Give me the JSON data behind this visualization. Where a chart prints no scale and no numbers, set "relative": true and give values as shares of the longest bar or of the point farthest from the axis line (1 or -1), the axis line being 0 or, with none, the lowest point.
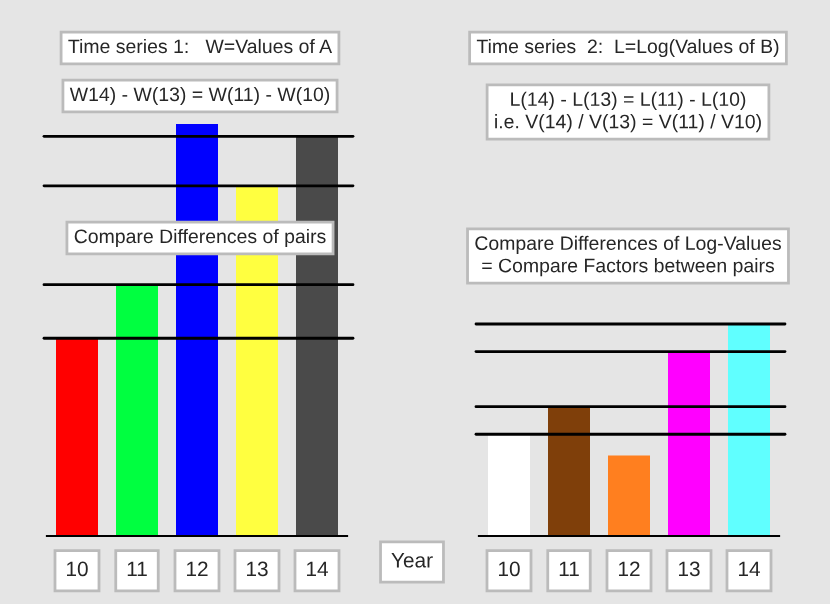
{
  "chart_data": [
    {
      "type": "bar",
      "relative": true,
      "title": "Time series 1:   W=Values of A",
      "subtitle": "W14) - W(13) = W(11) - W(10)",
      "xlabel": "Year",
      "categories": [
        "10",
        "11",
        "12",
        "13",
        "14"
      ],
      "values": [
        0.48,
        0.61,
        1,
        0.85,
        0.97
      ],
      "colors": [
        "#ff0000",
        "#00ff40",
        "#0000ff",
        "#ffff40",
        "#4a4a4a"
      ],
      "ref_lines": [
        {
          "axis": "y",
          "value": 0.97,
          "color": "#000000"
        },
        {
          "axis": "y",
          "value": 0.85,
          "color": "#000000"
        },
        {
          "axis": "y",
          "value": 0.61,
          "color": "#000000"
        },
        {
          "axis": "y",
          "value": 0.48,
          "color": "#000000"
        }
      ],
      "annotations": [
        "Compare Differences of pairs"
      ],
      "grid": false,
      "legend": false
    },
    {
      "type": "bar",
      "relative": true,
      "title": "Time series  2:  L=Log(Values of B)",
      "subtitle": "L(14) - L(13) = L(11) - L(10)\ni.e. V(14) / V(13) = V(11) / V10)",
      "categories": [
        "10",
        "11",
        "12",
        "13",
        "14"
      ],
      "values": [
        0.48,
        0.61,
        0.38,
        0.87,
        1
      ],
      "colors": [
        "#ffffff",
        "#7f3f0a",
        "#ff7f1f",
        "#ff00ff",
        "#60ffff"
      ],
      "ref_lines": [
        {
          "axis": "y",
          "value": 1,
          "color": "#000000"
        },
        {
          "axis": "y",
          "value": 0.87,
          "color": "#000000"
        },
        {
          "axis": "y",
          "value": 0.61,
          "color": "#000000"
        },
        {
          "axis": "y",
          "value": 0.48,
          "color": "#000000"
        }
      ],
      "annotations": [
        "Compare Differences of Log-Values\n= Compare Factors between pairs"
      ],
      "grid": false,
      "legend": false
    }
  ]
}
